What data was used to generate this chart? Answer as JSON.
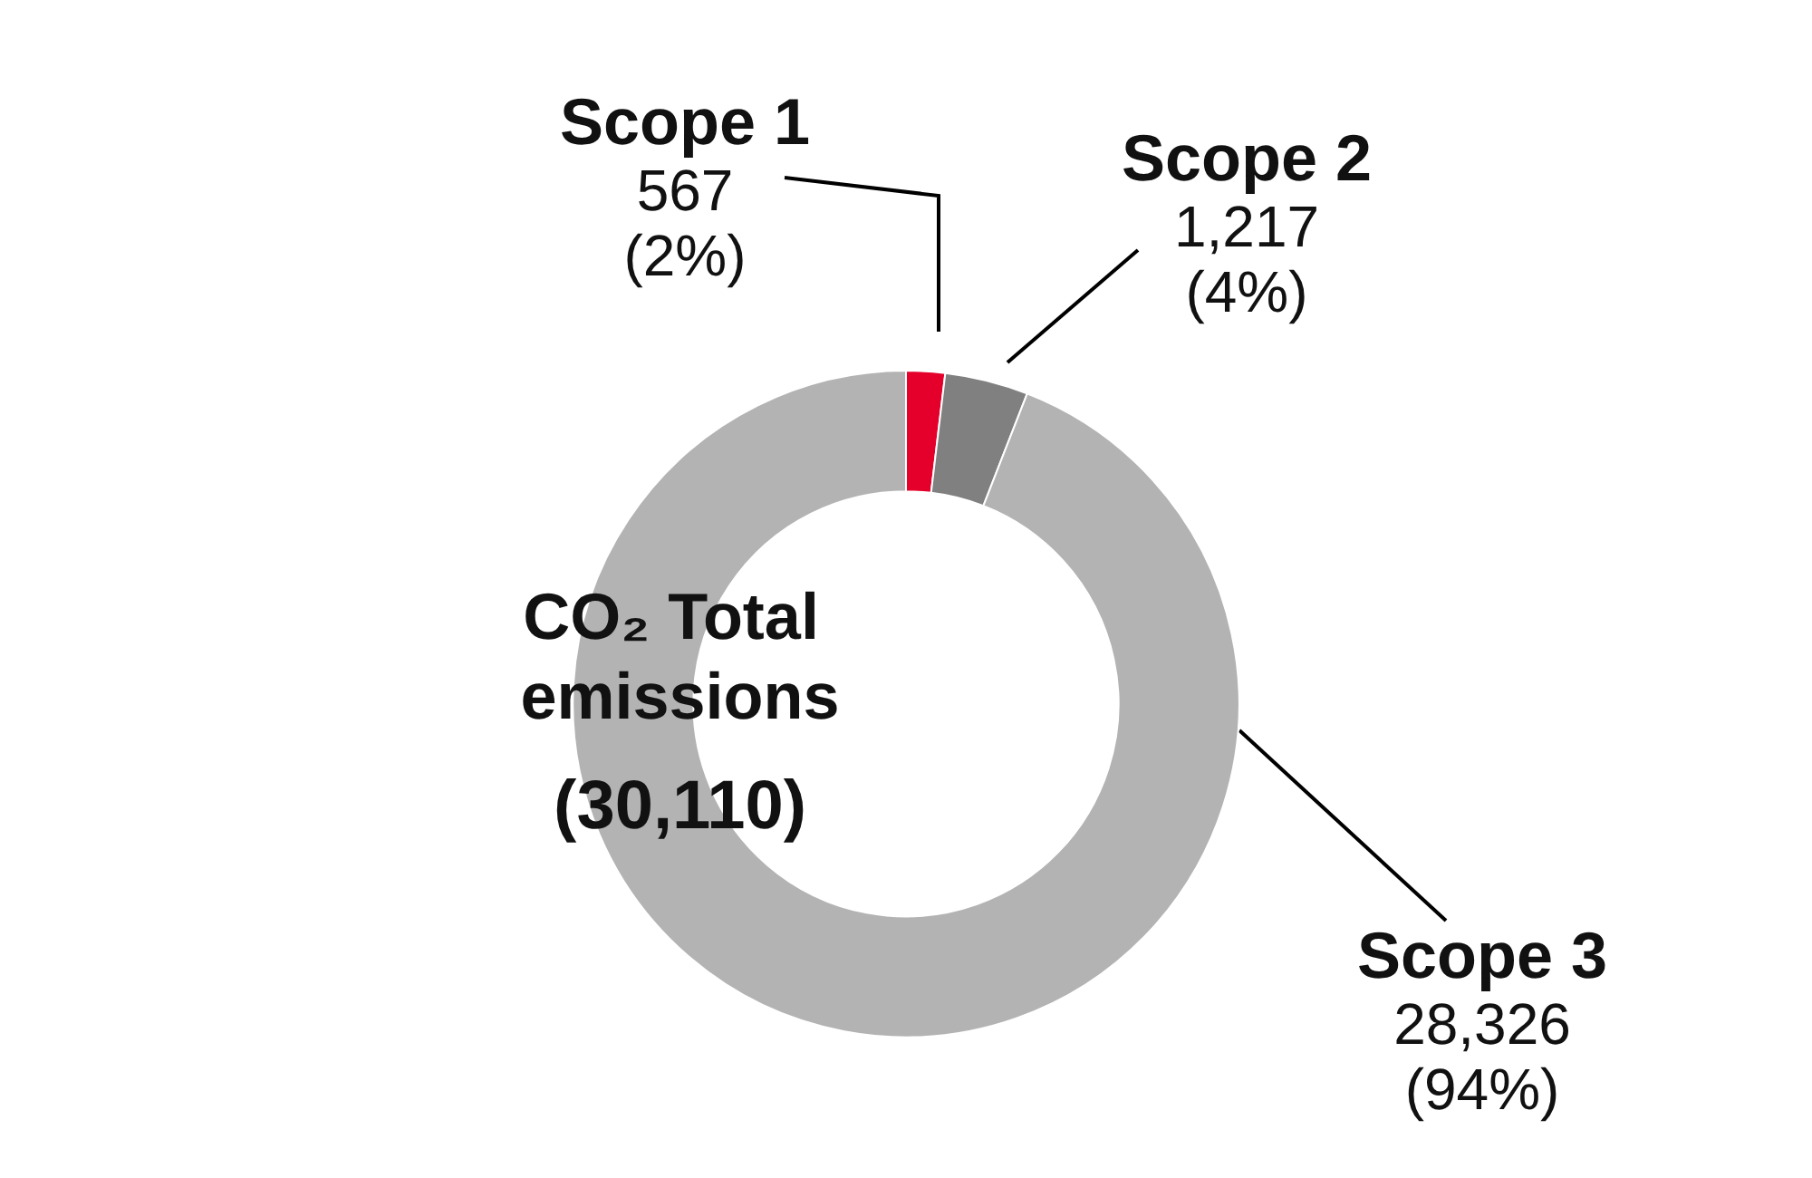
{
  "chart_data": {
    "type": "donut",
    "title": "CO₂ Total emissions",
    "subtitle": "(30,110)",
    "categories": [
      "Scope 1",
      "Scope 2",
      "Scope 3"
    ],
    "values": [
      567,
      1217,
      28326
    ],
    "colors": [
      "#e4002b",
      "#808080",
      "#b3b3b3"
    ],
    "value_labels": [
      "567\n(2%)",
      "1,217\n(4%)",
      "28,326\n(94%)"
    ],
    "legend": false
  }
}
